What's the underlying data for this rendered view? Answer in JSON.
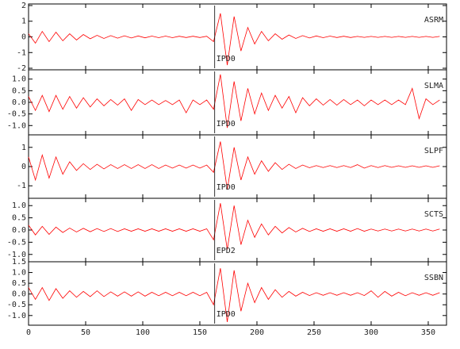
{
  "chart_data": [
    {
      "type": "line",
      "station": "ASRM",
      "phase": {
        "text": "IPD0",
        "x": 163
      },
      "color": "#ff0000",
      "xlim": [
        0,
        366
      ],
      "xticks": [
        0,
        50,
        100,
        150,
        200,
        250,
        300,
        350
      ],
      "ylim": [
        -2.1,
        2.1
      ],
      "yticks": [
        -2,
        -1,
        0,
        1,
        2
      ],
      "x": [
        0,
        6,
        12,
        18,
        24,
        30,
        36,
        42,
        48,
        54,
        60,
        66,
        72,
        78,
        84,
        90,
        96,
        102,
        108,
        114,
        120,
        126,
        132,
        138,
        144,
        150,
        156,
        162,
        168,
        174,
        180,
        186,
        192,
        198,
        204,
        210,
        216,
        222,
        228,
        234,
        240,
        246,
        252,
        258,
        264,
        270,
        276,
        282,
        288,
        294,
        300,
        306,
        312,
        318,
        324,
        330,
        336,
        342,
        348,
        354,
        360
      ],
      "values": [
        0.2,
        -0.4,
        0.35,
        -0.3,
        0.3,
        -0.25,
        0.2,
        -0.2,
        0.15,
        -0.12,
        0.1,
        -0.1,
        0.08,
        -0.08,
        0.07,
        -0.07,
        0.06,
        -0.06,
        0.05,
        -0.05,
        0.05,
        -0.05,
        0.04,
        -0.04,
        0.04,
        -0.04,
        0.04,
        -0.3,
        1.5,
        -1.8,
        1.3,
        -0.9,
        0.6,
        -0.45,
        0.35,
        -0.25,
        0.2,
        -0.15,
        0.12,
        -0.1,
        0.08,
        -0.07,
        0.06,
        -0.05,
        0.05,
        -0.04,
        0.04,
        -0.04,
        0.03,
        -0.03,
        0.03,
        -0.03,
        0.03,
        -0.03,
        0.03,
        -0.03,
        0.03,
        -0.03,
        0.03,
        -0.03,
        0.03
      ]
    },
    {
      "type": "line",
      "station": "SLMA",
      "phase": {
        "text": "IPD0",
        "x": 163
      },
      "color": "#ff0000",
      "xlim": [
        0,
        366
      ],
      "xticks": [
        0,
        50,
        100,
        150,
        200,
        250,
        300,
        350
      ],
      "ylim": [
        -1.4,
        1.4
      ],
      "yticks": [
        {
          "value": -1,
          "label": "-1.0"
        },
        -0.5,
        {
          "value": 0,
          "label": "0.0"
        },
        0.5,
        {
          "value": 1,
          "label": "1.0"
        }
      ],
      "x": [
        0,
        6,
        12,
        18,
        24,
        30,
        36,
        42,
        48,
        54,
        60,
        66,
        72,
        78,
        84,
        90,
        96,
        102,
        108,
        114,
        120,
        126,
        132,
        138,
        144,
        150,
        156,
        162,
        168,
        174,
        180,
        186,
        192,
        198,
        204,
        210,
        216,
        222,
        228,
        234,
        240,
        246,
        252,
        258,
        264,
        270,
        276,
        282,
        288,
        294,
        300,
        306,
        312,
        318,
        324,
        330,
        336,
        342,
        348,
        354,
        360
      ],
      "values": [
        0.25,
        -0.35,
        0.3,
        -0.4,
        0.3,
        -0.3,
        0.25,
        -0.25,
        0.2,
        -0.2,
        0.15,
        -0.15,
        0.12,
        -0.12,
        0.15,
        -0.35,
        0.12,
        -0.1,
        0.1,
        -0.1,
        0.08,
        -0.1,
        0.1,
        -0.45,
        0.1,
        -0.1,
        0.1,
        -0.3,
        1.2,
        -1.1,
        0.9,
        -0.8,
        0.6,
        -0.5,
        0.4,
        -0.35,
        0.3,
        -0.25,
        0.25,
        -0.45,
        0.2,
        -0.15,
        0.15,
        -0.12,
        0.12,
        -0.12,
        0.12,
        -0.1,
        0.1,
        -0.15,
        0.1,
        -0.1,
        0.1,
        -0.1,
        0.1,
        -0.1,
        0.6,
        -0.7,
        0.15,
        -0.1,
        0.1
      ]
    },
    {
      "type": "line",
      "station": "SLPF",
      "phase": {
        "text": "IPD0",
        "x": 163
      },
      "color": "#ff0000",
      "xlim": [
        0,
        366
      ],
      "xticks": [
        0,
        50,
        100,
        150,
        200,
        250,
        300,
        350
      ],
      "ylim": [
        -1.65,
        1.65
      ],
      "yticks": [
        -1,
        0,
        1
      ],
      "x": [
        0,
        6,
        12,
        18,
        24,
        30,
        36,
        42,
        48,
        54,
        60,
        66,
        72,
        78,
        84,
        90,
        96,
        102,
        108,
        114,
        120,
        126,
        132,
        138,
        144,
        150,
        156,
        162,
        168,
        174,
        180,
        186,
        192,
        198,
        204,
        210,
        216,
        222,
        228,
        234,
        240,
        246,
        252,
        258,
        264,
        270,
        276,
        282,
        288,
        294,
        300,
        306,
        312,
        318,
        324,
        330,
        336,
        342,
        348,
        354,
        360
      ],
      "values": [
        0.5,
        -0.7,
        0.6,
        -0.6,
        0.5,
        -0.4,
        0.25,
        -0.2,
        0.15,
        -0.15,
        0.12,
        -0.12,
        0.1,
        -0.1,
        0.1,
        -0.1,
        0.1,
        -0.1,
        0.1,
        -0.1,
        0.08,
        -0.08,
        0.08,
        -0.08,
        0.08,
        -0.08,
        0.08,
        -0.3,
        1.3,
        -1.2,
        1.0,
        -0.7,
        0.5,
        -0.4,
        0.3,
        -0.25,
        0.2,
        -0.15,
        0.12,
        -0.1,
        0.08,
        -0.06,
        0.05,
        -0.05,
        0.05,
        -0.05,
        0.05,
        -0.05,
        0.1,
        -0.08,
        0.05,
        -0.05,
        0.05,
        -0.04,
        0.04,
        -0.04,
        0.04,
        -0.04,
        0.04,
        -0.04,
        0.04
      ]
    },
    {
      "type": "line",
      "station": "SCTS",
      "phase": {
        "text": "EPD2",
        "x": 163
      },
      "color": "#ff0000",
      "xlim": [
        0,
        366
      ],
      "xticks": [
        0,
        50,
        100,
        150,
        200,
        250,
        300,
        350
      ],
      "ylim": [
        -1.3,
        1.3
      ],
      "yticks": [
        {
          "value": -1,
          "label": "-1.0"
        },
        -0.5,
        {
          "value": 0,
          "label": "0.0"
        },
        0.5,
        {
          "value": 1,
          "label": "1.0"
        }
      ],
      "x": [
        0,
        6,
        12,
        18,
        24,
        30,
        36,
        42,
        48,
        54,
        60,
        66,
        72,
        78,
        84,
        90,
        96,
        102,
        108,
        114,
        120,
        126,
        132,
        138,
        144,
        150,
        156,
        162,
        168,
        174,
        180,
        186,
        192,
        198,
        204,
        210,
        216,
        222,
        228,
        234,
        240,
        246,
        252,
        258,
        264,
        270,
        276,
        282,
        288,
        294,
        300,
        306,
        312,
        318,
        324,
        330,
        336,
        342,
        348,
        354,
        360
      ],
      "values": [
        0.2,
        -0.2,
        0.15,
        -0.18,
        0.12,
        -0.1,
        0.08,
        -0.08,
        0.07,
        -0.07,
        0.06,
        -0.06,
        0.06,
        -0.06,
        0.05,
        -0.05,
        0.05,
        -0.05,
        0.05,
        -0.05,
        0.05,
        -0.05,
        0.05,
        -0.05,
        0.05,
        -0.05,
        0.05,
        -0.4,
        1.1,
        -0.8,
        1.0,
        -0.6,
        0.4,
        -0.3,
        0.25,
        -0.2,
        0.15,
        -0.12,
        0.1,
        -0.08,
        0.07,
        -0.06,
        0.05,
        -0.05,
        0.05,
        -0.05,
        0.05,
        -0.05,
        0.06,
        -0.05,
        0.04,
        -0.04,
        0.04,
        -0.04,
        0.04,
        -0.04,
        0.04,
        -0.04,
        0.04,
        -0.04,
        0.04
      ]
    },
    {
      "type": "line",
      "station": "SSBN",
      "phase": {
        "text": "IPD0",
        "x": 163
      },
      "color": "#ff0000",
      "xlim": [
        0,
        366
      ],
      "xticks": [
        0,
        50,
        100,
        150,
        200,
        250,
        300,
        350
      ],
      "ylim": [
        -1.45,
        1.5
      ],
      "yticks": [
        {
          "value": -1,
          "label": "-1.0"
        },
        -0.5,
        {
          "value": 0,
          "label": "0.0"
        },
        0.5,
        {
          "value": 1,
          "label": "1.0"
        },
        1.5
      ],
      "x": [
        0,
        6,
        12,
        18,
        24,
        30,
        36,
        42,
        48,
        54,
        60,
        66,
        72,
        78,
        84,
        90,
        96,
        102,
        108,
        114,
        120,
        126,
        132,
        138,
        144,
        150,
        156,
        162,
        168,
        174,
        180,
        186,
        192,
        198,
        204,
        210,
        216,
        222,
        228,
        234,
        240,
        246,
        252,
        258,
        264,
        270,
        276,
        282,
        288,
        294,
        300,
        306,
        312,
        318,
        324,
        330,
        336,
        342,
        348,
        354,
        360
      ],
      "values": [
        0.3,
        -0.25,
        0.3,
        -0.3,
        0.25,
        -0.2,
        0.15,
        -0.15,
        0.12,
        -0.12,
        0.15,
        -0.12,
        0.1,
        -0.1,
        0.1,
        -0.1,
        0.1,
        -0.1,
        0.08,
        -0.08,
        0.08,
        -0.08,
        0.08,
        -0.08,
        0.08,
        -0.08,
        0.08,
        -0.5,
        1.2,
        -1.3,
        1.1,
        -0.8,
        0.5,
        -0.4,
        0.3,
        -0.25,
        0.2,
        -0.15,
        0.12,
        -0.1,
        0.08,
        -0.07,
        0.06,
        -0.06,
        0.06,
        -0.06,
        0.06,
        -0.06,
        0.06,
        -0.07,
        0.15,
        -0.15,
        0.12,
        -0.1,
        0.08,
        -0.08,
        0.06,
        -0.06,
        0.06,
        -0.06,
        0.06
      ]
    }
  ]
}
